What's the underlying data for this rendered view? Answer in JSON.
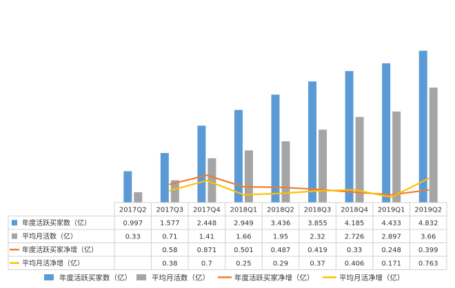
{
  "chart_data": {
    "type": "bar",
    "categories": [
      "2017Q2",
      "2017Q3",
      "2017Q4",
      "2018Q1",
      "2018Q2",
      "2018Q3",
      "2018Q4",
      "2019Q1",
      "2019Q2"
    ],
    "series": [
      {
        "name": "年度活跃买家数（亿）",
        "kind": "bar",
        "color": "#5b9bd5",
        "values": [
          "0.997",
          "1.577",
          "2.448",
          "2.949",
          "3.436",
          "3.855",
          "4.185",
          "4.433",
          "4.832"
        ]
      },
      {
        "name": "平均月活数（亿）",
        "kind": "bar",
        "color": "#a5a5a5",
        "values": [
          "0.33",
          "0.71",
          "1.41",
          "1.66",
          "1.95",
          "2.32",
          "2.726",
          "2.897",
          "3.66"
        ]
      },
      {
        "name": "年度活跃买家净增（亿）",
        "kind": "line",
        "color": "#ed7d31",
        "values": [
          "",
          "0.58",
          "0.871",
          "0.501",
          "0.487",
          "0.419",
          "0.33",
          "0.248",
          "0.399"
        ]
      },
      {
        "name": "平均月活净增（亿）",
        "kind": "line",
        "color": "#ffc000",
        "values": [
          "",
          "0.38",
          "0.7",
          "0.25",
          "0.29",
          "0.37",
          "0.406",
          "0.171",
          "0.763"
        ]
      }
    ],
    "ylim": [
      0,
      5.1
    ],
    "grid": false,
    "legend": "bottom",
    "data_table": true
  }
}
